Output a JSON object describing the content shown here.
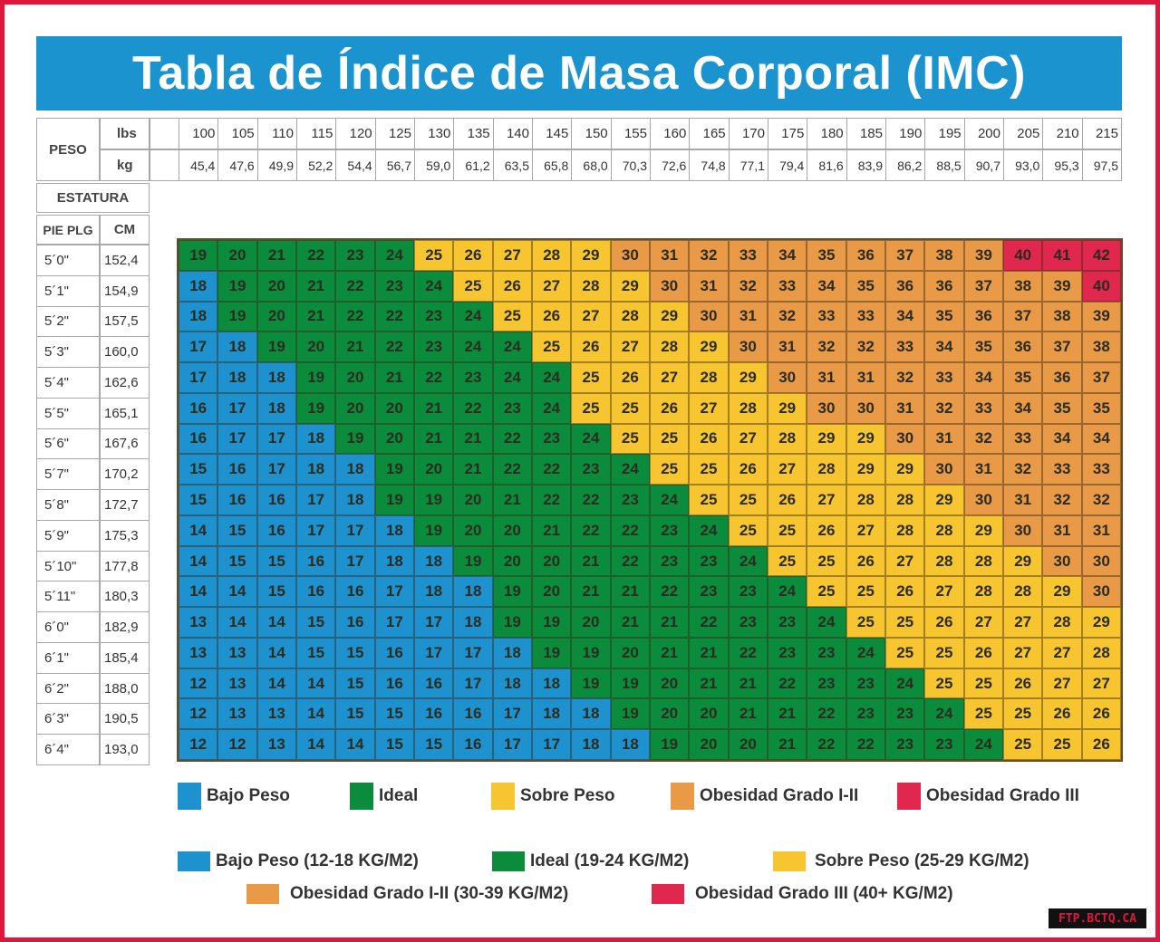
{
  "title": "Tabla de Índice de Masa Corporal (IMC)",
  "header": {
    "peso": "PESO",
    "lbs": "lbs",
    "kg": "kg",
    "estatura": "ESTATURA",
    "pie_plg": "PIE PLG",
    "cm": "CM"
  },
  "colors": {
    "bajo": "#1d92cf",
    "ideal": "#0a8c3c",
    "sobre": "#f7c52f",
    "obesidad": "#e89a47",
    "obesidad3": "#e0284f",
    "title_bg": "#1b93cf",
    "frame": "#e1163f"
  },
  "chart_data": {
    "type": "heatmap",
    "title": "Tabla de Índice de Masa Corporal (IMC)",
    "lbs": [
      "100",
      "105",
      "110",
      "115",
      "120",
      "125",
      "130",
      "135",
      "140",
      "145",
      "150",
      "155",
      "160",
      "165",
      "170",
      "175",
      "180",
      "185",
      "190",
      "195",
      "200",
      "205",
      "210",
      "215"
    ],
    "kg": [
      "45,4",
      "47,6",
      "49,9",
      "52,2",
      "54,4",
      "56,7",
      "59,0",
      "61,2",
      "63,5",
      "65,8",
      "68,0",
      "70,3",
      "72,6",
      "74,8",
      "77,1",
      "79,4",
      "81,6",
      "83,9",
      "86,2",
      "88,5",
      "90,7",
      "93,0",
      "95,3",
      "97,5"
    ],
    "heights_ft": [
      "5´0\"",
      "5´1\"",
      "5´2\"",
      "5´3\"",
      "5´4\"",
      "5´5\"",
      "5´6\"",
      "5´7\"",
      "5´8\"",
      "5´9\"",
      "5´10\"",
      "5´11\"",
      "6´0\"",
      "6´1\"",
      "6´2\"",
      "6´3\"",
      "6´4\""
    ],
    "heights_cm": [
      "152,4",
      "154,9",
      "157,5",
      "160,0",
      "162,6",
      "165,1",
      "167,6",
      "170,2",
      "172,7",
      "175,3",
      "177,8",
      "180,3",
      "182,9",
      "185,4",
      "188,0",
      "190,5",
      "193,0"
    ],
    "values": [
      [
        19,
        20,
        21,
        22,
        23,
        24,
        25,
        26,
        27,
        28,
        29,
        30,
        31,
        32,
        33,
        34,
        35,
        36,
        37,
        38,
        39,
        40,
        41,
        42
      ],
      [
        18,
        19,
        20,
        21,
        22,
        23,
        24,
        25,
        26,
        27,
        28,
        29,
        30,
        31,
        32,
        33,
        34,
        35,
        36,
        36,
        37,
        38,
        39,
        40
      ],
      [
        18,
        19,
        20,
        21,
        22,
        22,
        23,
        24,
        25,
        26,
        27,
        28,
        29,
        30,
        31,
        32,
        33,
        33,
        34,
        35,
        36,
        37,
        38,
        39
      ],
      [
        17,
        18,
        19,
        20,
        21,
        22,
        23,
        24,
        24,
        25,
        26,
        27,
        28,
        29,
        30,
        31,
        32,
        32,
        33,
        34,
        35,
        36,
        37,
        38
      ],
      [
        17,
        18,
        18,
        19,
        20,
        21,
        22,
        23,
        24,
        24,
        25,
        26,
        27,
        28,
        29,
        30,
        31,
        31,
        32,
        33,
        34,
        35,
        36,
        37
      ],
      [
        16,
        17,
        18,
        19,
        20,
        20,
        21,
        22,
        23,
        24,
        25,
        25,
        26,
        27,
        28,
        29,
        30,
        30,
        31,
        32,
        33,
        34,
        35,
        35
      ],
      [
        16,
        17,
        17,
        18,
        19,
        20,
        21,
        21,
        22,
        23,
        24,
        25,
        25,
        26,
        27,
        28,
        29,
        29,
        30,
        31,
        32,
        33,
        34,
        34
      ],
      [
        15,
        16,
        17,
        18,
        18,
        19,
        20,
        21,
        22,
        22,
        23,
        24,
        25,
        25,
        26,
        27,
        28,
        29,
        29,
        30,
        31,
        32,
        33,
        33
      ],
      [
        15,
        16,
        16,
        17,
        18,
        19,
        19,
        20,
        21,
        22,
        22,
        23,
        24,
        25,
        25,
        26,
        27,
        28,
        28,
        29,
        30,
        31,
        32,
        32
      ],
      [
        14,
        15,
        16,
        17,
        17,
        18,
        19,
        20,
        20,
        21,
        22,
        22,
        23,
        24,
        25,
        25,
        26,
        27,
        28,
        28,
        29,
        30,
        31,
        31
      ],
      [
        14,
        15,
        15,
        16,
        17,
        18,
        18,
        19,
        20,
        20,
        21,
        22,
        23,
        23,
        24,
        25,
        25,
        26,
        27,
        28,
        28,
        29,
        30,
        30
      ],
      [
        14,
        14,
        15,
        16,
        16,
        17,
        18,
        18,
        19,
        20,
        21,
        21,
        22,
        23,
        23,
        24,
        25,
        25,
        26,
        27,
        28,
        28,
        29,
        30
      ],
      [
        13,
        14,
        14,
        15,
        16,
        17,
        17,
        18,
        19,
        19,
        20,
        21,
        21,
        22,
        23,
        23,
        24,
        25,
        25,
        26,
        27,
        27,
        28,
        29
      ],
      [
        13,
        13,
        14,
        15,
        15,
        16,
        17,
        17,
        18,
        19,
        19,
        20,
        21,
        21,
        22,
        23,
        23,
        24,
        25,
        25,
        26,
        27,
        27,
        28
      ],
      [
        12,
        13,
        14,
        14,
        15,
        16,
        16,
        17,
        18,
        18,
        19,
        19,
        20,
        21,
        21,
        22,
        23,
        23,
        24,
        25,
        25,
        26,
        27,
        27
      ],
      [
        12,
        13,
        13,
        14,
        15,
        15,
        16,
        16,
        17,
        18,
        18,
        19,
        20,
        20,
        21,
        21,
        22,
        23,
        23,
        24,
        25,
        25,
        26,
        26
      ],
      [
        12,
        12,
        13,
        14,
        14,
        15,
        15,
        16,
        17,
        17,
        18,
        18,
        19,
        20,
        20,
        21,
        22,
        22,
        23,
        23,
        24,
        25,
        25,
        26
      ]
    ]
  },
  "legend1": [
    "Bajo Peso",
    "Ideal",
    "Sobre Peso",
    "Obesidad Grado I-II",
    "Obesidad Grado III"
  ],
  "legend2": [
    "Bajo Peso (12-18 KG/M2)",
    "Ideal (19-24 KG/M2)",
    "Sobre Peso (25-29 KG/M2)",
    "Obesidad Grado I-II (30-39 KG/M2)",
    "Obesidad Grado III (40+ KG/M2)"
  ],
  "watermark": "FTP.BCTQ.CA"
}
